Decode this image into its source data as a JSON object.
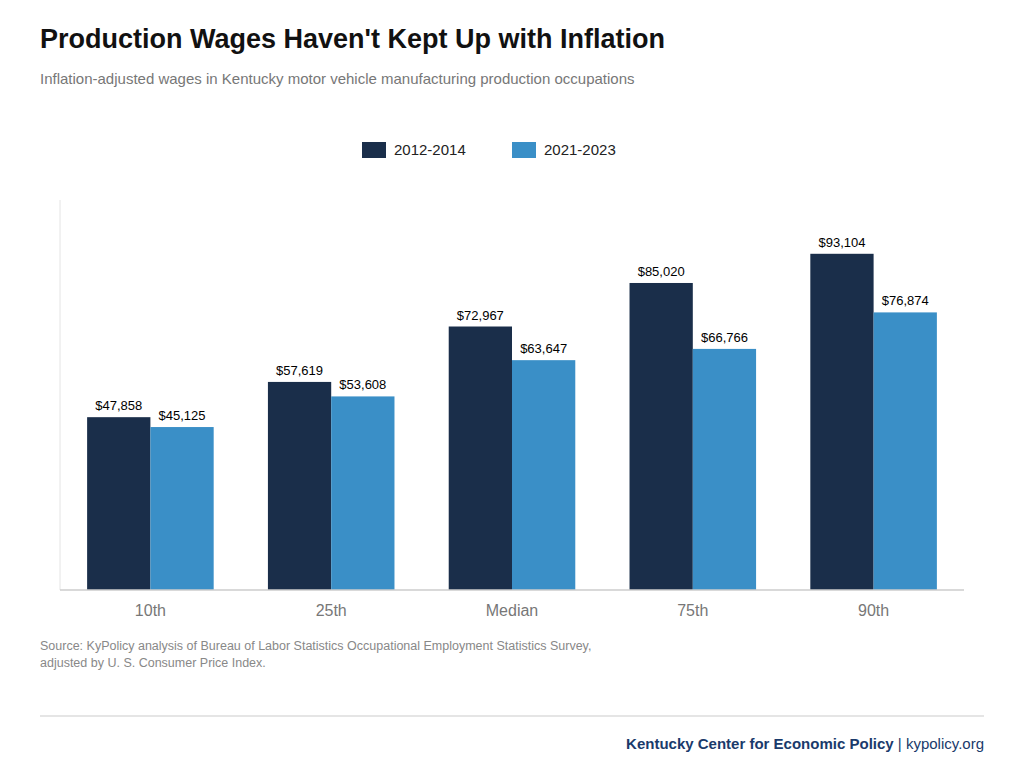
{
  "chart_data": {
    "type": "bar",
    "title": "Production Wages Haven't Kept Up with Inflation",
    "subtitle": "Inflation-adjusted wages in Kentucky motor vehicle manufacturing production occupations",
    "categories": [
      "10th",
      "25th",
      "Median",
      "75th",
      "90th"
    ],
    "series": [
      {
        "name": "2012-2014",
        "color": "#1a2e4a",
        "values": [
          47858,
          57619,
          72967,
          85020,
          93104
        ],
        "value_labels": [
          "$47,858",
          "$57,619",
          "$72,967",
          "$85,020",
          "$93,104"
        ]
      },
      {
        "name": "2021-2023",
        "color": "#3a8fc7",
        "values": [
          45125,
          53608,
          63647,
          66766,
          76874
        ],
        "value_labels": [
          "$45,125",
          "$53,608",
          "$63,647",
          "$66,766",
          "$76,874"
        ]
      }
    ],
    "ylim": [
      0,
      108000
    ],
    "data_labels": true,
    "tick_labels": "x",
    "grid": false,
    "legend": "top",
    "annotations": [
      "Source: KyPolicy analysis of Bureau of Labor Statistics Occupational Employment Statistics Survey,\nadjusted by U. S. Consumer Price Index.",
      "Kentucky Center for Economic Policy",
      "|",
      "kypolicy.org"
    ]
  }
}
